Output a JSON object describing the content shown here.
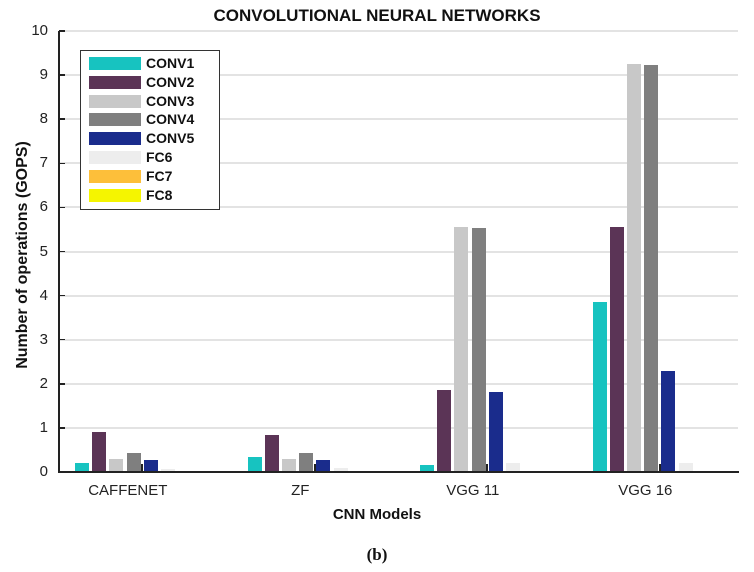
{
  "chart_data": {
    "type": "bar",
    "title": "CONVOLUTIONAL NEURAL NETWORKS",
    "xlabel": "CNN Models",
    "ylabel": "Number of operations (GOPS)",
    "caption": "(b)",
    "ylim": [
      0,
      10
    ],
    "yticks": [
      0,
      1,
      2,
      3,
      4,
      5,
      6,
      7,
      8,
      9,
      10
    ],
    "grid": true,
    "legend_position": "upper left",
    "categories": [
      "CAFFENET",
      "ZF",
      "VGG 11",
      "VGG 16"
    ],
    "series": [
      {
        "name": "CONV1",
        "color": "#17C3C0",
        "values": [
          0.21,
          0.33,
          0.15,
          3.86
        ]
      },
      {
        "name": "CONV2",
        "color": "#5B3456",
        "values": [
          0.9,
          0.84,
          1.85,
          5.55
        ]
      },
      {
        "name": "CONV3",
        "color": "#C8C8C8",
        "values": [
          0.29,
          0.29,
          5.55,
          9.26
        ]
      },
      {
        "name": "CONV4",
        "color": "#7F7F7F",
        "values": [
          0.43,
          0.42,
          5.53,
          9.23
        ]
      },
      {
        "name": "CONV5",
        "color": "#1A2C8C",
        "values": [
          0.28,
          0.27,
          1.82,
          2.3
        ]
      },
      {
        "name": "FC6",
        "color": "#EDEDED",
        "values": [
          0.06,
          0.08,
          0.2,
          0.2
        ]
      },
      {
        "name": "FC7",
        "color": "#FDBF3A",
        "values": [
          0.03,
          0.03,
          0.03,
          0.03
        ]
      },
      {
        "name": "FC8",
        "color": "#F5F500",
        "values": [
          0.01,
          0.01,
          0.01,
          0.01
        ]
      }
    ]
  }
}
